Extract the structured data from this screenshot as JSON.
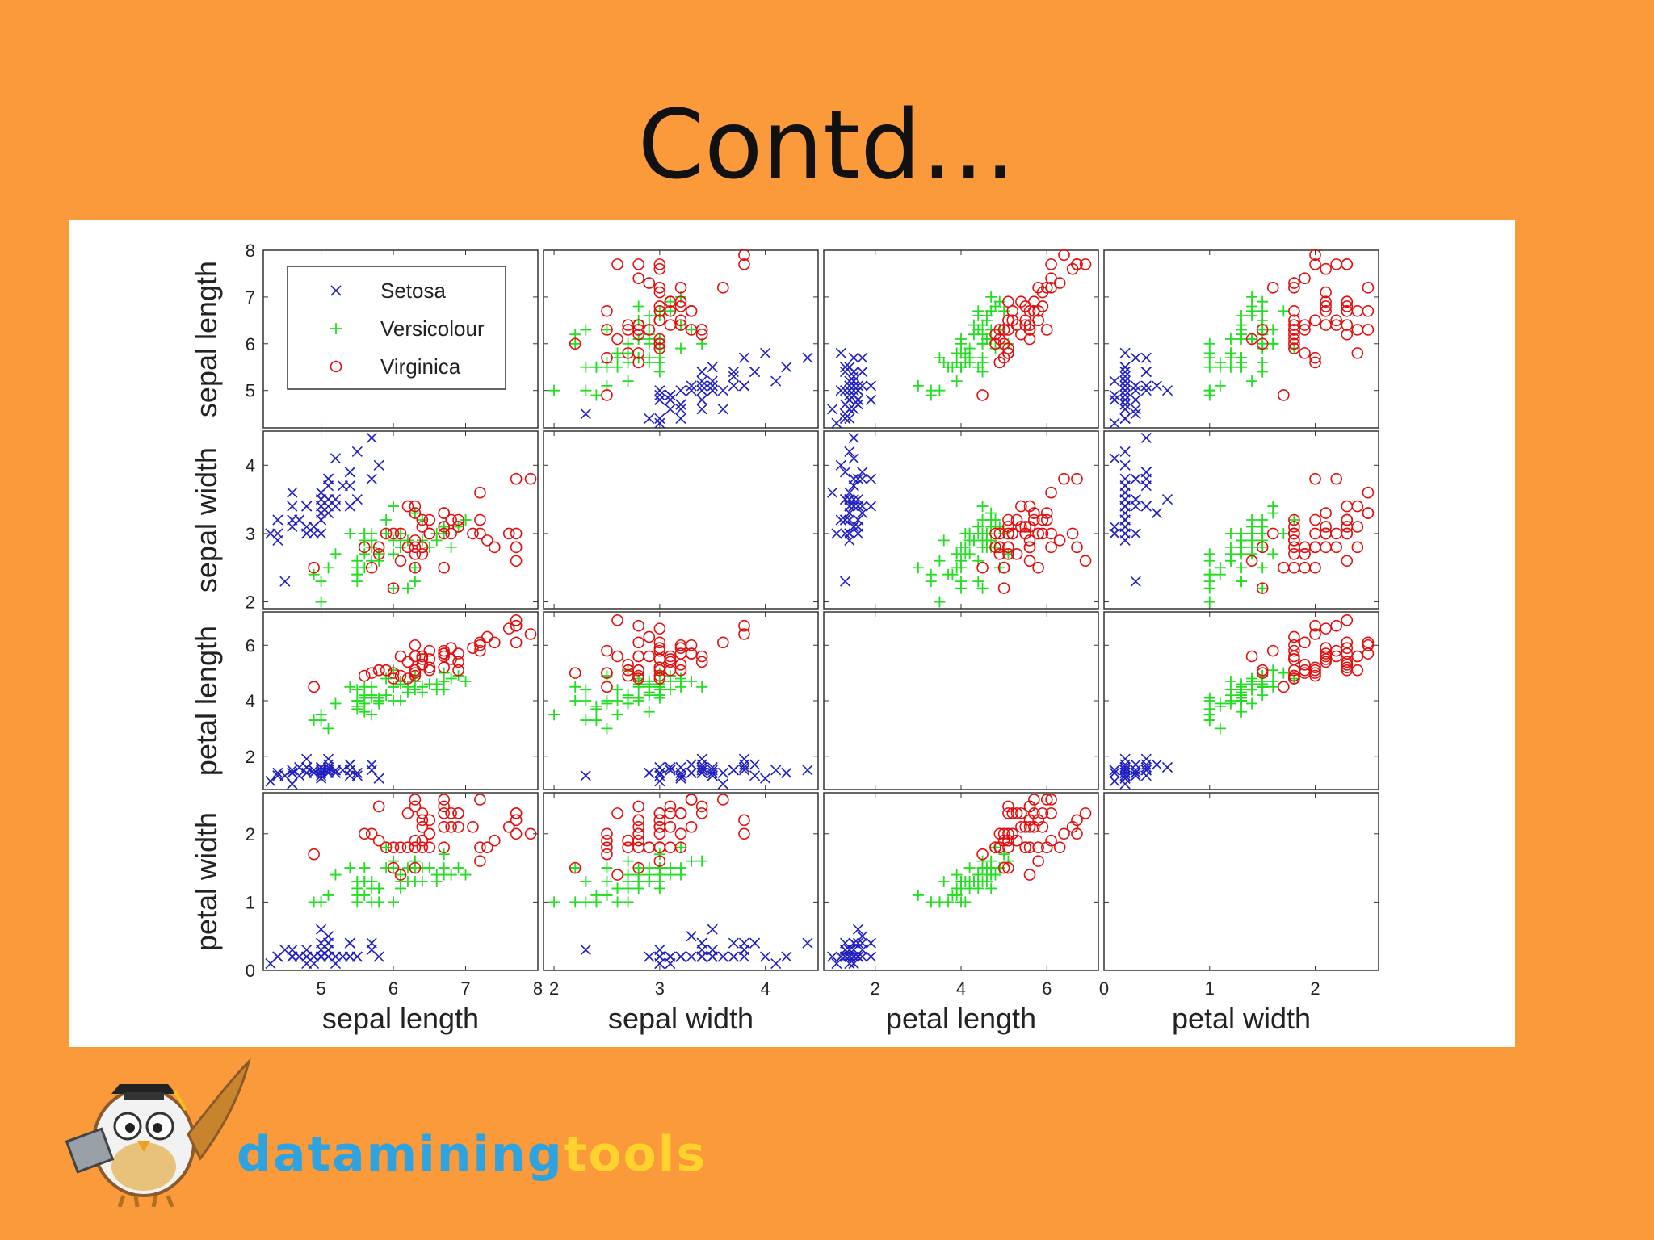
{
  "slide": {
    "title": "Contd…"
  },
  "logo": {
    "text_part_a": "datamining",
    "text_part_b": "tools"
  },
  "chart_data": {
    "type": "scatter",
    "layout": "scatter-matrix",
    "variables": [
      "sepal length",
      "sepal width",
      "petal length",
      "petal width"
    ],
    "ranges": {
      "sepal length": [
        4.2,
        8.0
      ],
      "sepal width": [
        1.9,
        4.5
      ],
      "petal length": [
        0.8,
        7.2
      ],
      "petal width": [
        0,
        2.6
      ]
    },
    "ticks": {
      "sepal length": [
        5,
        6,
        7,
        8
      ],
      "sepal width": [
        2,
        3,
        4
      ],
      "petal length": [
        2,
        4,
        6
      ],
      "petal width": [
        0,
        1,
        2
      ]
    },
    "legend": {
      "position": "top-left of first panel",
      "entries": [
        {
          "name": "Setosa",
          "marker": "x",
          "color": "#2020c0"
        },
        {
          "name": "Versicolour",
          "marker": "+",
          "color": "#22dd22"
        },
        {
          "name": "Virginica",
          "marker": "o",
          "color": "#e01010"
        }
      ]
    },
    "series": [
      {
        "name": "Setosa",
        "points": [
          [
            5.1,
            3.5,
            1.4,
            0.2
          ],
          [
            4.9,
            3.0,
            1.4,
            0.2
          ],
          [
            4.7,
            3.2,
            1.3,
            0.2
          ],
          [
            4.6,
            3.1,
            1.5,
            0.2
          ],
          [
            5.0,
            3.6,
            1.4,
            0.2
          ],
          [
            5.4,
            3.9,
            1.7,
            0.4
          ],
          [
            4.6,
            3.4,
            1.4,
            0.3
          ],
          [
            5.0,
            3.4,
            1.5,
            0.2
          ],
          [
            4.4,
            2.9,
            1.4,
            0.2
          ],
          [
            4.9,
            3.1,
            1.5,
            0.1
          ],
          [
            5.4,
            3.7,
            1.5,
            0.2
          ],
          [
            4.8,
            3.4,
            1.6,
            0.2
          ],
          [
            4.8,
            3.0,
            1.4,
            0.1
          ],
          [
            4.3,
            3.0,
            1.1,
            0.1
          ],
          [
            5.8,
            4.0,
            1.2,
            0.2
          ],
          [
            5.7,
            4.4,
            1.5,
            0.4
          ],
          [
            5.4,
            3.9,
            1.3,
            0.4
          ],
          [
            5.1,
            3.5,
            1.4,
            0.3
          ],
          [
            5.7,
            3.8,
            1.7,
            0.3
          ],
          [
            5.1,
            3.8,
            1.5,
            0.3
          ],
          [
            5.4,
            3.4,
            1.7,
            0.2
          ],
          [
            5.1,
            3.7,
            1.5,
            0.4
          ],
          [
            4.6,
            3.6,
            1.0,
            0.2
          ],
          [
            5.1,
            3.3,
            1.7,
            0.5
          ],
          [
            4.8,
            3.4,
            1.9,
            0.2
          ],
          [
            5.0,
            3.0,
            1.6,
            0.2
          ],
          [
            5.0,
            3.4,
            1.6,
            0.4
          ],
          [
            5.2,
            3.5,
            1.5,
            0.2
          ],
          [
            5.2,
            3.4,
            1.4,
            0.2
          ],
          [
            4.7,
            3.2,
            1.6,
            0.2
          ],
          [
            4.8,
            3.1,
            1.6,
            0.2
          ],
          [
            5.4,
            3.4,
            1.5,
            0.4
          ],
          [
            5.2,
            4.1,
            1.5,
            0.1
          ],
          [
            5.5,
            4.2,
            1.4,
            0.2
          ],
          [
            4.9,
            3.1,
            1.5,
            0.2
          ],
          [
            5.0,
            3.2,
            1.2,
            0.2
          ],
          [
            5.5,
            3.5,
            1.3,
            0.2
          ],
          [
            4.4,
            3.0,
            1.3,
            0.2
          ],
          [
            5.1,
            3.4,
            1.5,
            0.2
          ],
          [
            5.0,
            3.5,
            1.3,
            0.3
          ],
          [
            4.5,
            2.3,
            1.3,
            0.3
          ],
          [
            4.4,
            3.2,
            1.3,
            0.2
          ],
          [
            5.0,
            3.5,
            1.6,
            0.6
          ],
          [
            5.1,
            3.8,
            1.9,
            0.4
          ],
          [
            4.8,
            3.0,
            1.4,
            0.3
          ],
          [
            5.1,
            3.8,
            1.6,
            0.2
          ],
          [
            4.6,
            3.2,
            1.4,
            0.2
          ],
          [
            5.3,
            3.7,
            1.5,
            0.2
          ],
          [
            5.0,
            3.3,
            1.4,
            0.2
          ]
        ]
      },
      {
        "name": "Versicolour",
        "points": [
          [
            7.0,
            3.2,
            4.7,
            1.4
          ],
          [
            6.4,
            3.2,
            4.5,
            1.5
          ],
          [
            6.9,
            3.1,
            4.9,
            1.5
          ],
          [
            5.5,
            2.3,
            4.0,
            1.3
          ],
          [
            6.5,
            2.8,
            4.6,
            1.5
          ],
          [
            5.7,
            2.8,
            4.5,
            1.3
          ],
          [
            6.3,
            3.3,
            4.7,
            1.6
          ],
          [
            4.9,
            2.4,
            3.3,
            1.0
          ],
          [
            6.6,
            2.9,
            4.6,
            1.3
          ],
          [
            5.2,
            2.7,
            3.9,
            1.4
          ],
          [
            5.0,
            2.0,
            3.5,
            1.0
          ],
          [
            5.9,
            3.0,
            4.2,
            1.5
          ],
          [
            6.0,
            2.2,
            4.0,
            1.0
          ],
          [
            6.1,
            2.9,
            4.7,
            1.4
          ],
          [
            5.6,
            2.9,
            3.6,
            1.3
          ],
          [
            6.7,
            3.1,
            4.4,
            1.4
          ],
          [
            5.6,
            3.0,
            4.5,
            1.5
          ],
          [
            5.8,
            2.7,
            4.1,
            1.0
          ],
          [
            6.2,
            2.2,
            4.5,
            1.5
          ],
          [
            5.6,
            2.5,
            3.9,
            1.1
          ],
          [
            5.9,
            3.2,
            4.8,
            1.8
          ],
          [
            6.1,
            2.8,
            4.0,
            1.3
          ],
          [
            6.3,
            2.5,
            4.9,
            1.5
          ],
          [
            6.1,
            2.8,
            4.7,
            1.2
          ],
          [
            6.4,
            2.9,
            4.3,
            1.3
          ],
          [
            6.6,
            3.0,
            4.4,
            1.4
          ],
          [
            6.8,
            2.8,
            4.8,
            1.4
          ],
          [
            6.7,
            3.0,
            5.0,
            1.7
          ],
          [
            6.0,
            2.9,
            4.5,
            1.5
          ],
          [
            5.7,
            2.6,
            3.5,
            1.0
          ],
          [
            5.5,
            2.4,
            3.8,
            1.1
          ],
          [
            5.5,
            2.4,
            3.7,
            1.0
          ],
          [
            5.8,
            2.7,
            3.9,
            1.2
          ],
          [
            6.0,
            2.7,
            5.1,
            1.6
          ],
          [
            5.4,
            3.0,
            4.5,
            1.5
          ],
          [
            6.0,
            3.4,
            4.5,
            1.6
          ],
          [
            6.7,
            3.1,
            4.7,
            1.5
          ],
          [
            6.3,
            2.3,
            4.4,
            1.3
          ],
          [
            5.6,
            3.0,
            4.1,
            1.3
          ],
          [
            5.5,
            2.5,
            4.0,
            1.3
          ],
          [
            5.5,
            2.6,
            4.4,
            1.2
          ],
          [
            6.1,
            3.0,
            4.6,
            1.4
          ],
          [
            5.8,
            2.6,
            4.0,
            1.2
          ],
          [
            5.0,
            2.3,
            3.3,
            1.0
          ],
          [
            5.6,
            2.7,
            4.2,
            1.3
          ],
          [
            5.7,
            3.0,
            4.2,
            1.2
          ],
          [
            5.7,
            2.9,
            4.2,
            1.3
          ],
          [
            6.2,
            2.9,
            4.3,
            1.3
          ],
          [
            5.1,
            2.5,
            3.0,
            1.1
          ],
          [
            5.7,
            2.8,
            4.1,
            1.3
          ]
        ]
      },
      {
        "name": "Virginica",
        "points": [
          [
            6.3,
            3.3,
            6.0,
            2.5
          ],
          [
            5.8,
            2.7,
            5.1,
            1.9
          ],
          [
            7.1,
            3.0,
            5.9,
            2.1
          ],
          [
            6.3,
            2.9,
            5.6,
            1.8
          ],
          [
            6.5,
            3.0,
            5.8,
            2.2
          ],
          [
            7.6,
            3.0,
            6.6,
            2.1
          ],
          [
            4.9,
            2.5,
            4.5,
            1.7
          ],
          [
            7.3,
            2.9,
            6.3,
            1.8
          ],
          [
            6.7,
            2.5,
            5.8,
            1.8
          ],
          [
            7.2,
            3.6,
            6.1,
            2.5
          ],
          [
            6.5,
            3.2,
            5.1,
            2.0
          ],
          [
            6.4,
            2.7,
            5.3,
            1.9
          ],
          [
            6.8,
            3.0,
            5.5,
            2.1
          ],
          [
            5.7,
            2.5,
            5.0,
            2.0
          ],
          [
            5.8,
            2.8,
            5.1,
            2.4
          ],
          [
            6.4,
            3.2,
            5.3,
            2.3
          ],
          [
            6.5,
            3.0,
            5.5,
            1.8
          ],
          [
            7.7,
            3.8,
            6.7,
            2.2
          ],
          [
            7.7,
            2.6,
            6.9,
            2.3
          ],
          [
            6.0,
            2.2,
            5.0,
            1.5
          ],
          [
            6.9,
            3.2,
            5.7,
            2.3
          ],
          [
            5.6,
            2.8,
            4.9,
            2.0
          ],
          [
            7.7,
            2.8,
            6.7,
            2.0
          ],
          [
            6.3,
            2.7,
            4.9,
            1.8
          ],
          [
            6.7,
            3.3,
            5.7,
            2.1
          ],
          [
            7.2,
            3.2,
            6.0,
            1.8
          ],
          [
            6.2,
            2.8,
            4.8,
            1.8
          ],
          [
            6.1,
            3.0,
            4.9,
            1.8
          ],
          [
            6.4,
            2.8,
            5.6,
            2.1
          ],
          [
            7.2,
            3.0,
            5.8,
            1.6
          ],
          [
            7.4,
            2.8,
            6.1,
            1.9
          ],
          [
            7.9,
            3.8,
            6.4,
            2.0
          ],
          [
            6.4,
            2.8,
            5.6,
            2.2
          ],
          [
            6.3,
            2.8,
            5.1,
            1.5
          ],
          [
            6.1,
            2.6,
            5.6,
            1.4
          ],
          [
            7.7,
            3.0,
            6.1,
            2.3
          ],
          [
            6.3,
            3.4,
            5.6,
            2.4
          ],
          [
            6.4,
            3.1,
            5.5,
            1.8
          ],
          [
            6.0,
            3.0,
            4.8,
            1.8
          ],
          [
            6.9,
            3.1,
            5.4,
            2.1
          ],
          [
            6.7,
            3.1,
            5.6,
            2.4
          ],
          [
            6.9,
            3.1,
            5.1,
            2.3
          ],
          [
            6.8,
            3.2,
            5.9,
            2.3
          ],
          [
            6.7,
            3.3,
            5.7,
            2.5
          ],
          [
            6.7,
            3.0,
            5.2,
            2.3
          ],
          [
            6.3,
            2.5,
            5.0,
            1.9
          ],
          [
            6.5,
            3.0,
            5.2,
            2.0
          ],
          [
            6.2,
            3.4,
            5.4,
            2.3
          ],
          [
            5.9,
            3.0,
            5.1,
            1.8
          ]
        ]
      }
    ]
  }
}
